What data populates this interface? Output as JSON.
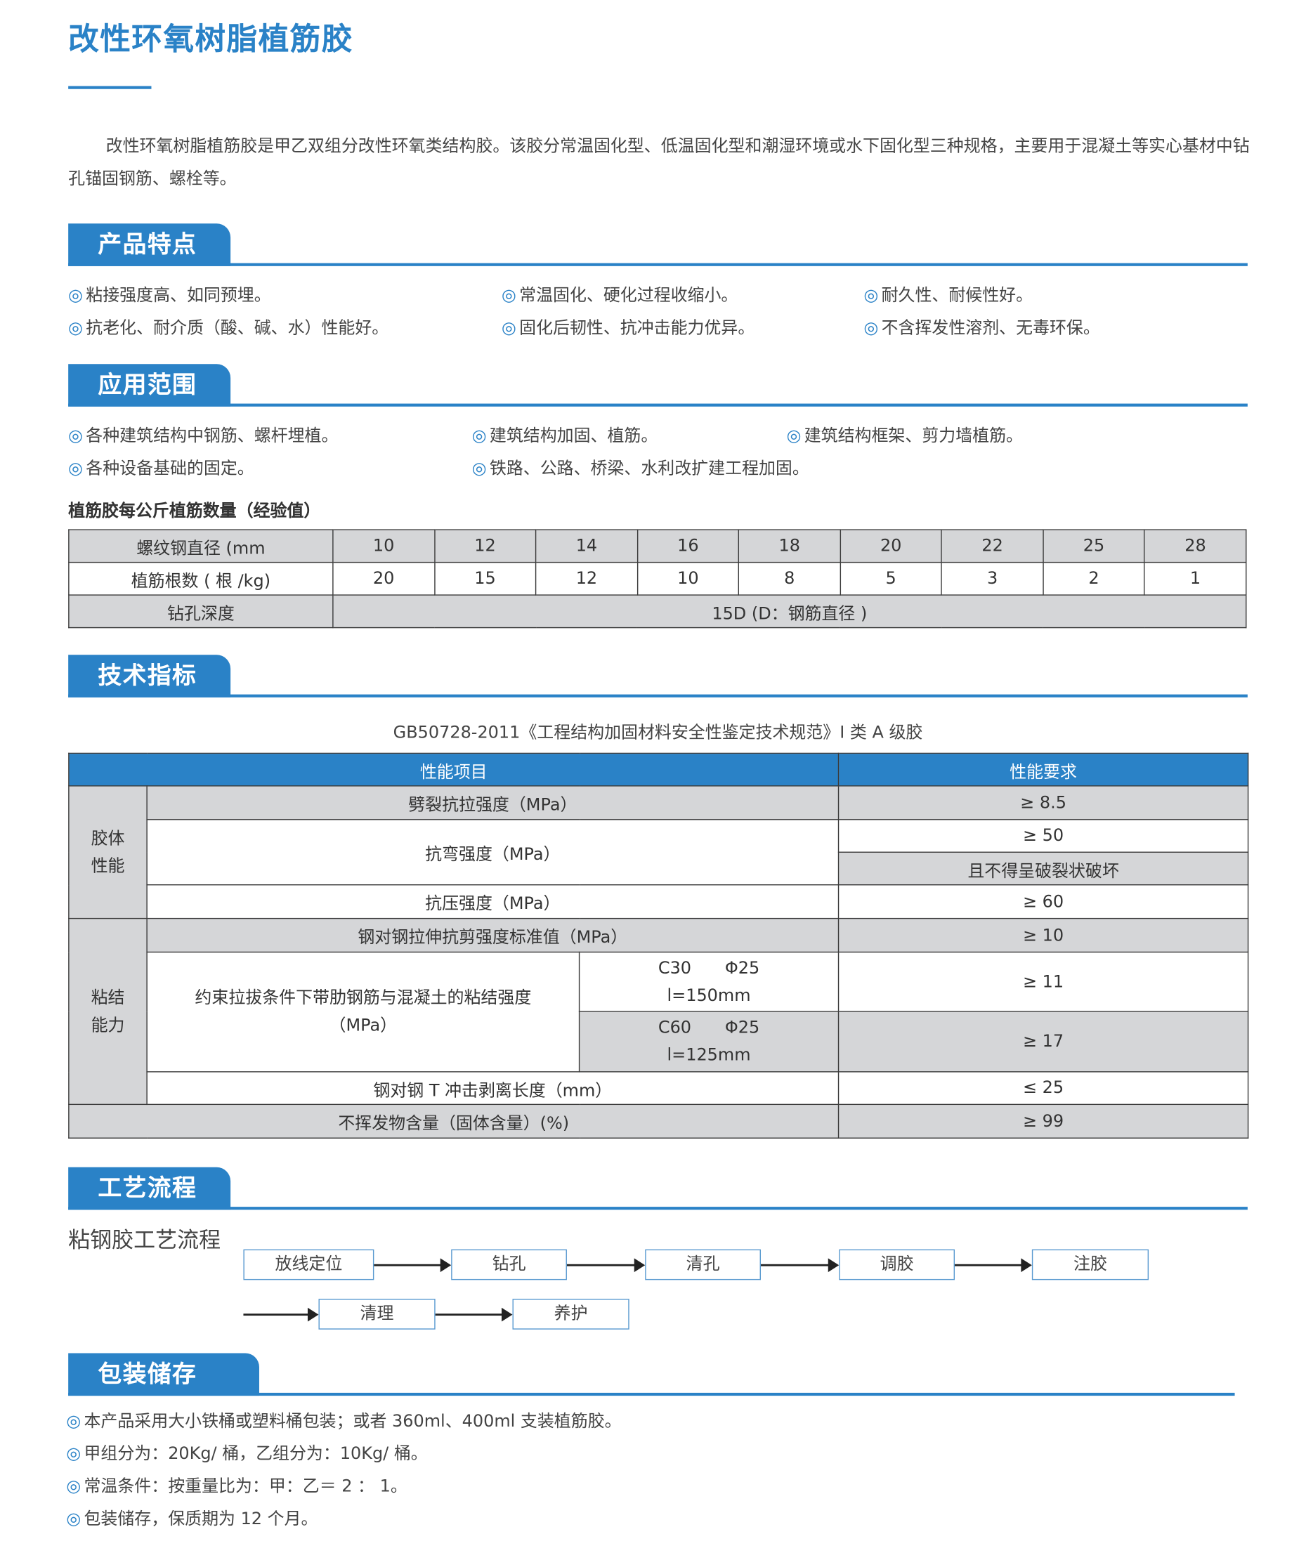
{
  "title": "改性环氧树脂植筋胶",
  "intro": "改性环氧树脂植筋胶是甲乙双组分改性环氧类结构胶。该胶分常温固化型、低温固化型和潮湿环境或水下固化型三种规格，主要用于混凝土等实心基材中钻孔锚固钢筋、螺栓等。",
  "bullet_icon": "◎",
  "colors": {
    "accent": "#2a82c7",
    "gray_cell": "#d5d6d8"
  },
  "features": {
    "heading": "产品特点",
    "items": [
      "粘接强度高、如同预埋。",
      "常温固化、硬化过程收缩小。",
      "耐久性、耐候性好。",
      "抗老化、耐介质（酸、碱、水）性能好。",
      "固化后韧性、抗冲击能力优异。",
      "不含挥发性溶剂、无毒环保。"
    ]
  },
  "applications": {
    "heading": "应用范围",
    "items": [
      "各种建筑结构中钢筋、螺杆埋植。",
      "建筑结构加固、植筋。",
      "建筑结构框架、剪力墙植筋。",
      "各种设备基础的固定。",
      "铁路、公路、桥梁、水利改扩建工程加固。"
    ]
  },
  "rebar_table": {
    "caption": "植筋胶每公斤植筋数量（经验值）",
    "row_labels": [
      "螺纹钢直径 (mm",
      "植筋根数 ( 根 /kg)",
      "钻孔深度"
    ],
    "diameters": [
      "10",
      "12",
      "14",
      "16",
      "18",
      "20",
      "22",
      "25",
      "28"
    ],
    "counts": [
      "20",
      "15",
      "12",
      "10",
      "8",
      "5",
      "3",
      "2",
      "1"
    ],
    "depth": "15D (D：钢筋直径 )"
  },
  "tech": {
    "heading": "技术指标",
    "standard": "GB50728-2011《工程结构加固材料安全性鉴定技术规范》I 类 A 级胶",
    "header": [
      "性能项目",
      "性能要求"
    ],
    "group1": "胶体\n性能",
    "group2": "粘结\n能力",
    "rows": {
      "r1": [
        "劈裂抗拉强度（MPa）",
        "≥ 8.5"
      ],
      "r2": [
        "抗弯强度（MPa）",
        "≥ 50",
        "且不得呈破裂状破坏"
      ],
      "r3": [
        "抗压强度（MPa）",
        "≥ 60"
      ],
      "r4": [
        "钢对钢拉伸抗剪强度标准值（MPa）",
        "≥ 10"
      ],
      "r5": [
        "约束拉拔条件下带肋钢筋与混凝土的粘结强度（MPa）",
        "C30　　Φ25\nl=150mm",
        "≥ 11",
        "C60　　Φ25\nl=125mm",
        "≥ 17"
      ],
      "r6": [
        "钢对钢 T 冲击剥离长度（mm）",
        "≤ 25"
      ],
      "r7": [
        "不挥发物含量（固体含量）(%)",
        "≥ 99"
      ]
    }
  },
  "process": {
    "heading": "工艺流程",
    "label": "粘钢胶工艺流程",
    "steps": [
      "放线定位",
      "钻孔",
      "清孔",
      "调胶",
      "注胶",
      "清理",
      "养护"
    ]
  },
  "packaging": {
    "heading": "包装储存",
    "items": [
      "本产品采用大小铁桶或塑料桶包装；或者 360ml、400ml 支装植筋胶。",
      "甲组分为：20Kg/ 桶，乙组分为：10Kg/ 桶。",
      "常温条件：按重量比为：甲：乙＝ 2 ： 1。",
      "包装储存，保质期为 12 个月。"
    ]
  }
}
